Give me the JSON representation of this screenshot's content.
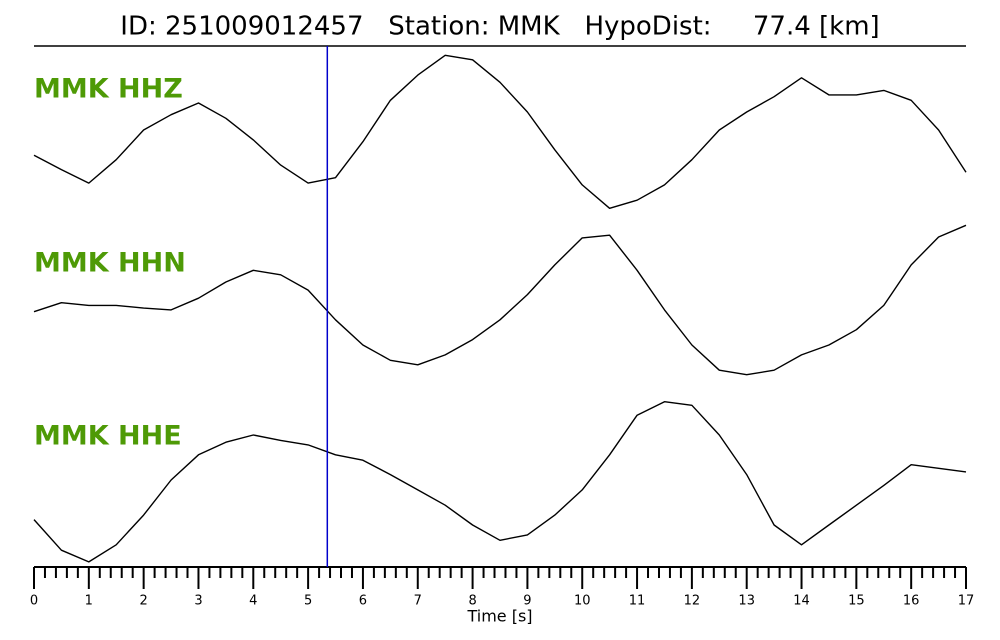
{
  "chart_data": {
    "type": "seismogram",
    "title": "ID: 251009012457   Station: MMK   HypoDist:     77.4 [km]",
    "xlabel": "Time [s]",
    "x": [
      0,
      0.5,
      1,
      1.5,
      2,
      2.5,
      3,
      3.5,
      4,
      4.5,
      5,
      5.5,
      6,
      6.5,
      7,
      7.5,
      8,
      8.5,
      9,
      9.5,
      10,
      10.5,
      11,
      11.5,
      12,
      12.5,
      13,
      13.5,
      14,
      14.5,
      15,
      15.5,
      16,
      16.5,
      17
    ],
    "series": [
      {
        "name": "MMK HHZ",
        "color": "#000000",
        "label_color": "#4e9a06",
        "values": [
          -0.28,
          -0.44,
          -0.59,
          -0.33,
          0,
          0.17,
          0.3,
          0.13,
          -0.11,
          -0.39,
          -0.59,
          -0.53,
          -0.13,
          0.33,
          0.61,
          0.83,
          0.78,
          0.53,
          0.2,
          -0.22,
          -0.61,
          -0.87,
          -0.78,
          -0.61,
          -0.33,
          0,
          0.2,
          0.37,
          0.58,
          0.39,
          0.39,
          0.44,
          0.33,
          0,
          -0.47
        ]
      },
      {
        "name": "MMK HHN",
        "color": "#000000",
        "label_color": "#4e9a06",
        "values": [
          -0.13,
          -0.03,
          -0.06,
          -0.06,
          -0.09,
          -0.11,
          0.02,
          0.2,
          0.33,
          0.28,
          0.11,
          -0.22,
          -0.5,
          -0.67,
          -0.72,
          -0.61,
          -0.44,
          -0.22,
          0.06,
          0.39,
          0.69,
          0.72,
          0.33,
          -0.11,
          -0.5,
          -0.78,
          -0.83,
          -0.78,
          -0.61,
          -0.5,
          -0.33,
          -0.06,
          0.39,
          0.7,
          0.83
        ]
      },
      {
        "name": "MMK HHE",
        "color": "#000000",
        "label_color": "#4e9a06",
        "values": [
          -0.44,
          -0.78,
          -0.91,
          -0.72,
          -0.39,
          0,
          0.28,
          0.42,
          0.5,
          0.44,
          0.39,
          0.28,
          0.22,
          0.06,
          -0.11,
          -0.28,
          -0.5,
          -0.67,
          -0.61,
          -0.39,
          -0.11,
          0.28,
          0.72,
          0.87,
          0.83,
          0.5,
          0.06,
          -0.5,
          -0.72,
          -0.5,
          -0.28,
          -0.06,
          0.17,
          0.13,
          0.09
        ]
      }
    ],
    "ylim": [
      -1,
      1
    ],
    "xlim": [
      0,
      17
    ],
    "xticks": [
      0,
      1,
      2,
      3,
      4,
      5,
      6,
      7,
      8,
      9,
      10,
      11,
      12,
      13,
      14,
      15,
      16,
      17
    ],
    "xminorticks": [
      0.2,
      0.4,
      0.6,
      0.8,
      1.2,
      1.4,
      1.6,
      1.8,
      2.2,
      2.4,
      2.6,
      2.8,
      3.2,
      3.4,
      3.6,
      3.8,
      4.2,
      4.4,
      4.6,
      4.8,
      5.2,
      5.4,
      5.6,
      5.8,
      6.2,
      6.4,
      6.6,
      6.8,
      7.2,
      7.4,
      7.6,
      7.8,
      8.2,
      8.4,
      8.6,
      8.8,
      9.2,
      9.4,
      9.6,
      9.8,
      10.2,
      10.4,
      10.6,
      10.8,
      11.2,
      11.4,
      11.6,
      11.8,
      12.2,
      12.4,
      12.6,
      12.8,
      13.2,
      13.4,
      13.6,
      13.8,
      14.2,
      14.4,
      14.6,
      14.8,
      15.2,
      15.4,
      15.6,
      15.8,
      16.2,
      16.4,
      16.6,
      16.8
    ],
    "marker_x": 5.35,
    "marker_color": "#0000cc"
  }
}
